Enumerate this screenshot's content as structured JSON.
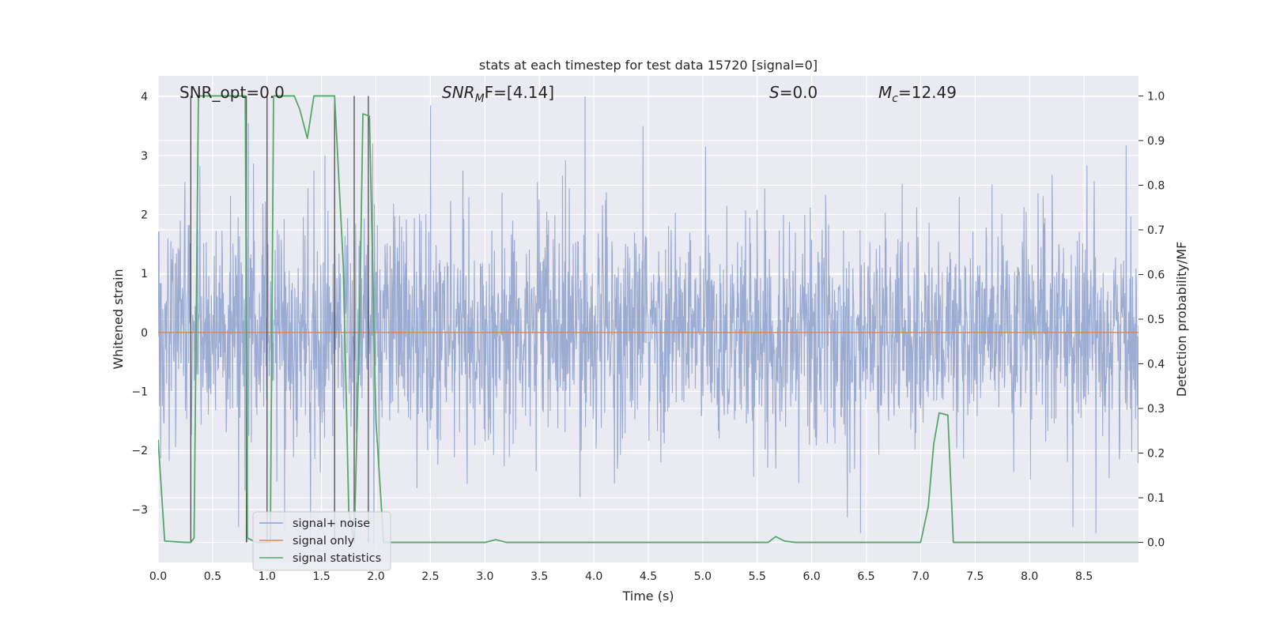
{
  "chart_data": {
    "type": "line",
    "title": "stats at each timestep for test data 15720 [signal=0]",
    "xlabel": "Time (s)",
    "ylabel_left": "Whitened strain",
    "ylabel_right": "Detection probability/MF",
    "xlim": [
      0.0,
      9.0
    ],
    "ylim_left": [
      -3.9,
      4.35
    ],
    "ylim_right": [
      -0.045,
      1.045
    ],
    "x_ticks": [
      "0.0",
      "0.5",
      "1.0",
      "1.5",
      "2.0",
      "2.5",
      "3.0",
      "3.5",
      "4.0",
      "4.5",
      "5.0",
      "5.5",
      "6.0",
      "6.5",
      "7.0",
      "7.5",
      "8.0",
      "8.5"
    ],
    "y_left_ticks": [
      "−3",
      "−2",
      "−1",
      "0",
      "1",
      "2",
      "3",
      "4"
    ],
    "y_right_ticks": [
      "0.0",
      "0.1",
      "0.2",
      "0.3",
      "0.4",
      "0.5",
      "0.6",
      "0.7",
      "0.8",
      "0.9",
      "1.0"
    ],
    "grid": true,
    "legend_position": "lower-left",
    "annotations": {
      "snr_opt": "SNR_opt=0.0",
      "snr_mf_label": "SNR",
      "snr_mf_sub": "M",
      "snr_mf_value": "F=[4.14]",
      "s_label": "S",
      "s_value": "=0.0",
      "mc_label": "M",
      "mc_sub": "c",
      "mc_value": "=12.49"
    },
    "series": [
      {
        "name": "signal+ noise",
        "axis": "left",
        "color": "#8da0cb",
        "description_values": {
          "typical_envelope": [
            -1.6,
            2.5
          ],
          "notable_peaks": [
            [
              0.83,
              3.55
            ],
            [
              2.5,
              3.85
            ],
            [
              3.92,
              4.0
            ],
            [
              4.45,
              3.5
            ],
            [
              1.53,
              3.0
            ],
            [
              1.97,
              3.2
            ]
          ],
          "notable_troughs": [
            [
              0.74,
              -3.3
            ],
            [
              0.82,
              -3.55
            ],
            [
              1.4,
              -3.45
            ],
            [
              6.45,
              -3.4
            ],
            [
              8.4,
              -3.3
            ],
            [
              1.98,
              -3.6
            ]
          ]
        }
      },
      {
        "name": "signal only",
        "axis": "left",
        "color": "#dd8452",
        "x": [
          0.0,
          9.0
        ],
        "y": [
          0.0,
          0.0
        ]
      },
      {
        "name": "signal statistics",
        "axis": "right",
        "color": "#55a868",
        "x": [
          0.0,
          0.06,
          0.25,
          0.3,
          0.33,
          0.37,
          0.6,
          0.8,
          0.82,
          0.9,
          0.95,
          0.99,
          1.03,
          1.06,
          1.25,
          1.3,
          1.37,
          1.43,
          1.62,
          1.7,
          1.75,
          1.8,
          1.85,
          1.88,
          1.94,
          2.0,
          2.07,
          2.1,
          2.5,
          3.0,
          3.1,
          3.2,
          5.6,
          5.67,
          5.75,
          5.85,
          6.0,
          7.0,
          7.07,
          7.12,
          7.17,
          7.25,
          7.3,
          7.35,
          9.0
        ],
        "y": [
          0.23,
          0.003,
          0.0,
          0.0,
          0.01,
          1.0,
          1.0,
          1.0,
          0.01,
          0.0,
          0.0,
          0.0,
          0.0,
          1.0,
          1.0,
          0.97,
          0.905,
          1.0,
          1.0,
          0.62,
          0.07,
          0.0,
          0.5,
          0.96,
          0.955,
          0.27,
          0.0,
          0.0,
          0.0,
          0.0,
          0.006,
          0.0,
          0.0,
          0.013,
          0.003,
          0.0,
          0.0,
          0.0,
          0.08,
          0.22,
          0.29,
          0.285,
          0.0,
          0.0,
          0.0
        ]
      }
    ],
    "vertical_lines_x": [
      0.3,
      0.81,
      1.0,
      1.62,
      1.8,
      1.93
    ]
  }
}
